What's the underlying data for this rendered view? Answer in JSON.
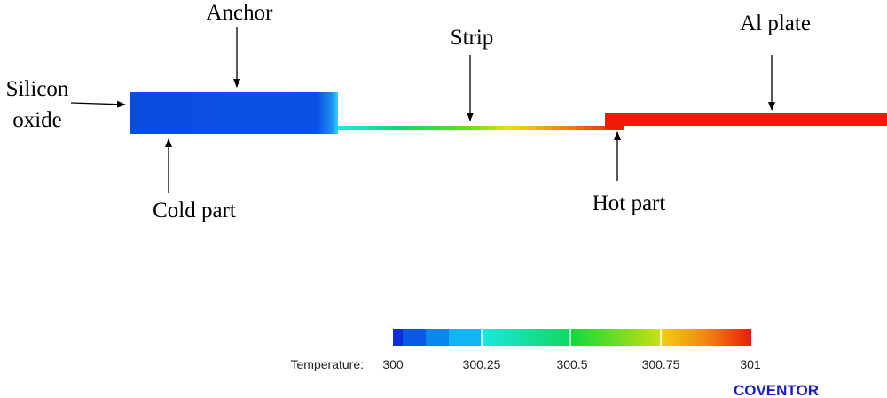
{
  "labels": {
    "silicon": "Silicon",
    "oxide": "oxide",
    "anchor": "Anchor",
    "strip": "Strip",
    "al_plate": "Al plate",
    "cold_part": "Cold part",
    "hot_part": "Hot part"
  },
  "legend": {
    "title": "Temperature:",
    "ticks": [
      "300",
      "300.25",
      "300.5",
      "300.75",
      "301"
    ],
    "min": 300,
    "max": 301
  },
  "brand": "COVENTOR",
  "colors": {
    "brand": "#1a1acc",
    "cold": "#0a4de0",
    "hot": "#ee1a0a"
  }
}
